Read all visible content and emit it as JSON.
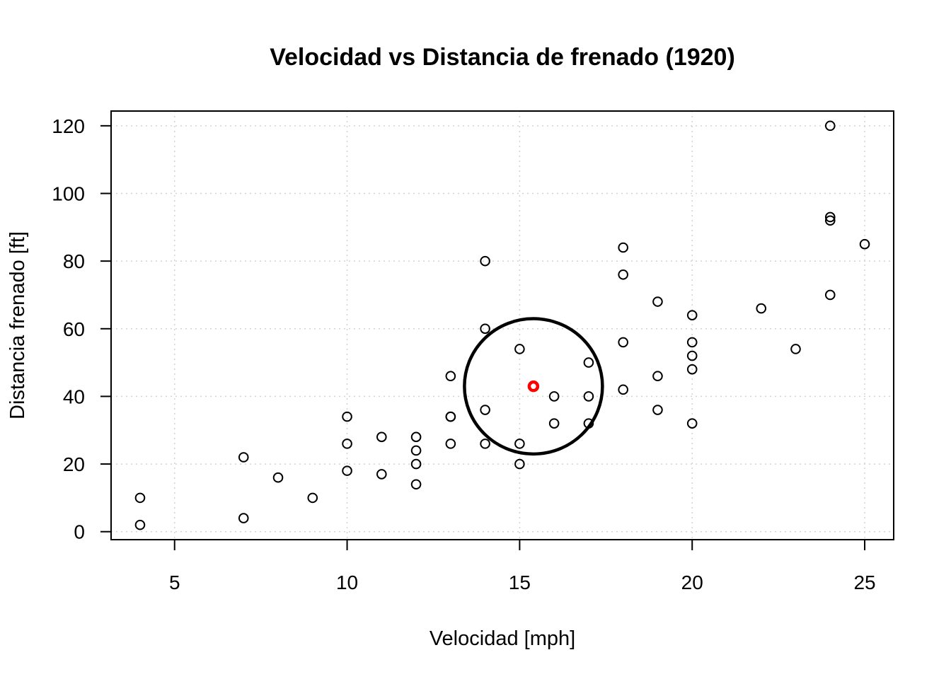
{
  "chart_data": {
    "type": "scatter",
    "title": "Velocidad vs Distancia de frenado (1920)",
    "xlabel": "Velocidad [mph]",
    "ylabel": "Distancia frenado [ft]",
    "xlim": [
      3.16,
      25.84
    ],
    "ylim": [
      -2.36,
      124.36
    ],
    "xticks": [
      5,
      10,
      15,
      20,
      25
    ],
    "yticks": [
      0,
      20,
      40,
      60,
      80,
      100,
      120
    ],
    "grid": true,
    "legend": "none",
    "points": {
      "x": [
        4,
        4,
        7,
        7,
        8,
        9,
        10,
        10,
        10,
        11,
        11,
        12,
        12,
        12,
        12,
        13,
        13,
        13,
        13,
        14,
        14,
        14,
        14,
        15,
        15,
        15,
        16,
        16,
        17,
        17,
        17,
        18,
        18,
        18,
        18,
        19,
        19,
        19,
        20,
        20,
        20,
        20,
        20,
        22,
        23,
        24,
        24,
        24,
        24,
        25
      ],
      "y": [
        2,
        10,
        4,
        22,
        16,
        10,
        18,
        26,
        34,
        17,
        28,
        14,
        20,
        24,
        28,
        26,
        34,
        34,
        46,
        26,
        36,
        60,
        80,
        20,
        26,
        54,
        32,
        40,
        32,
        40,
        50,
        42,
        56,
        76,
        84,
        36,
        46,
        68,
        32,
        48,
        52,
        56,
        64,
        66,
        54,
        70,
        92,
        93,
        120,
        85
      ],
      "color": "#000000"
    },
    "highlight": {
      "x": 15.4,
      "y": 42.98,
      "color": "#ff0000"
    },
    "circle": {
      "center_x": 15.4,
      "center_y": 42.98,
      "radius_x": 2.0,
      "radius_y": 20.0,
      "color": "#000000"
    }
  }
}
